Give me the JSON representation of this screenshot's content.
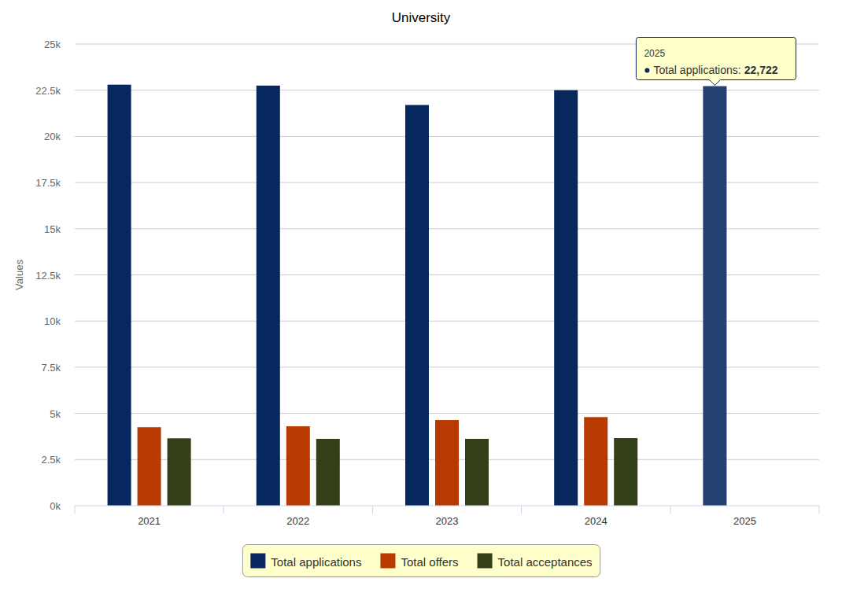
{
  "chart_data": {
    "type": "bar",
    "title": "University",
    "y_label": "Values",
    "categories": [
      "2021",
      "2022",
      "2023",
      "2024",
      "2025"
    ],
    "series": [
      {
        "name": "Total applications",
        "color": "#06285e",
        "values": [
          22800,
          22750,
          21700,
          22500,
          22722
        ]
      },
      {
        "name": "Total offers",
        "color": "#b83a00",
        "values": [
          4250,
          4300,
          4640,
          4800,
          null
        ]
      },
      {
        "name": "Total acceptances",
        "color": "#333f17",
        "values": [
          3650,
          3620,
          3620,
          3660,
          null
        ]
      }
    ],
    "ylim": [
      0,
      25000
    ],
    "yticks": [
      {
        "value": 0,
        "label": "0k"
      },
      {
        "value": 2500,
        "label": "2.5k"
      },
      {
        "value": 5000,
        "label": "5k"
      },
      {
        "value": 7500,
        "label": "7.5k"
      },
      {
        "value": 10000,
        "label": "10k"
      },
      {
        "value": 12500,
        "label": "12.5k"
      },
      {
        "value": 15000,
        "label": "15k"
      },
      {
        "value": 17500,
        "label": "17.5k"
      },
      {
        "value": 20000,
        "label": "20k"
      },
      {
        "value": 22500,
        "label": "22.5k"
      },
      {
        "value": 25000,
        "label": "25k"
      }
    ],
    "grid": true,
    "legend": "bottom",
    "annotations": [
      {
        "title": "2025",
        "text": "Total applications:",
        "value": 22722,
        "label": "22,722"
      }
    ]
  }
}
